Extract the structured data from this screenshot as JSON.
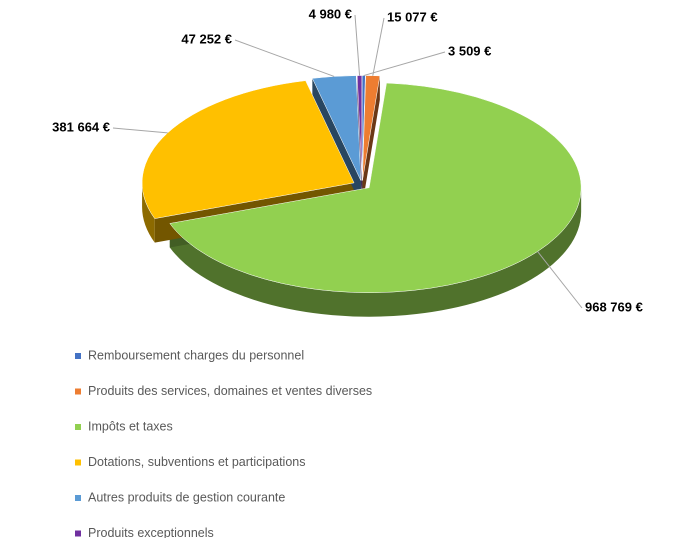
{
  "chart_data": {
    "type": "pie",
    "categories": [
      "Remboursement charges du personnel",
      "Produits des services, domaines et ventes diverses",
      "Impôts et taxes",
      "Dotations, subventions et participations",
      "Autres produits de gestion courante",
      "Produits exceptionnels"
    ],
    "values": [
      3509,
      15077,
      968769,
      381664,
      47252,
      4980
    ],
    "value_labels": [
      "3 509 €",
      "15 077 €",
      "968 769 €",
      "381 664 €",
      "47 252 €",
      "4 980 €"
    ],
    "colors": [
      "#4472c4",
      "#ed7d31",
      "#92d050",
      "#ffc000",
      "#5b9bd5",
      "#7030a0"
    ],
    "legend": "bottom"
  }
}
